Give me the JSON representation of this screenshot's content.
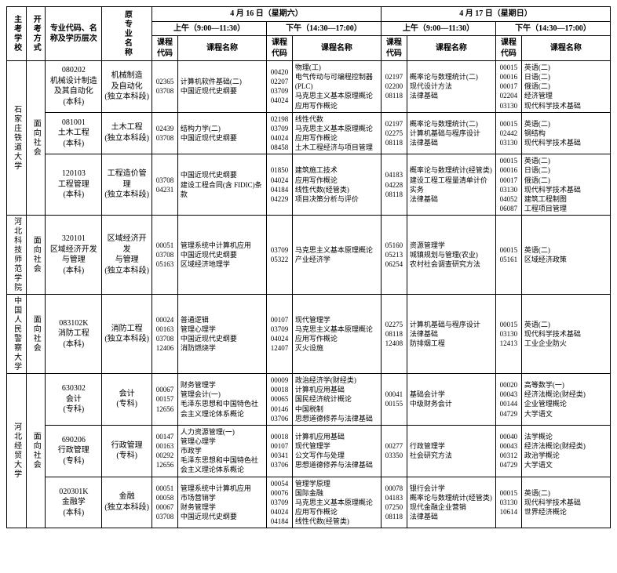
{
  "header": {
    "school": "主考学校",
    "method": "开考方式",
    "major": "专业代码、名称及学历层次",
    "orig": "原专业名称",
    "day1": "4 月 16 日（星期六）",
    "day2": "4 月 17 日（星期日）",
    "am": "上午（9:00—11:30）",
    "pm": "下午（14:30—17:00）",
    "code": "课程代码",
    "name": "课程名称"
  },
  "schools": {
    "s1": "石家庄铁道大学",
    "s2": "河北科技师范学院",
    "s3": "中国人民警察大学",
    "s4": "河北经贸大学"
  },
  "method_label": "面向社会",
  "rows": [
    {
      "major": "080202\n机械设计制造\n及其自动化\n(本科)",
      "orig": "机械制造\n及自动化\n(独立本科段)",
      "c1": "02365\n03708",
      "n1": "计算机软件基础(二)\n中国近现代史纲要",
      "c2": "00420\n02207\n03709\n04024",
      "n2": "物理(工)\n电气传动与可编程控制器(PLC)\n马克思主义基本原理概论\n应用写作概论",
      "c3": "02197\n02200\n08118",
      "n3": "概率论与数理统计(二)\n现代设计方法\n法律基础",
      "c4": "00015\n00016\n00017\n02204\n03130",
      "n4": "英语(二)\n日语(二)\n俄语(二)\n经济管理\n现代科学技术基础"
    },
    {
      "major": "081001\n土木工程\n(本科)",
      "orig": "土木工程\n(独立本科段)",
      "c1": "02439\n03708",
      "n1": "结构力学(二)\n中国近现代史纲要",
      "c2": "02198\n03709\n04024\n08458",
      "n2": "线性代数\n马克思主义基本原理概论\n应用写作概论\n土木工程经济与项目管理",
      "c3": "02197\n02275\n08118",
      "n3": "概率论与数理统计(二)\n计算机基础与程序设计\n法律基础",
      "c4": "00015\n02442\n03130",
      "n4": "英语(二)\n钢结构\n现代科学技术基础"
    },
    {
      "major": "120103\n工程管理\n(本科)",
      "orig": "工程造价管理\n(独立本科段)",
      "c1": "03708\n04231",
      "n1": "中国近现代史纲要\n建设工程合同(含 FIDIC)条款",
      "c2": "01850\n04024\n04184\n04229",
      "n2": "建筑施工技术\n应用写作概论\n线性代数(经管类)\n项目决策分析与评价",
      "c3": "04183\n04228\n08118",
      "n3": "概率论与数理统计(经管类)\n建设工程工程量清单计价实务\n法律基础",
      "c4": "00015\n00016\n00017\n03130\n04052\n06087",
      "n4": "英语(二)\n日语(二)\n俄语(二)\n现代科学技术基础\n建筑工程制图\n工程项目管理"
    },
    {
      "major": "320101\n区域经济开发\n与管理\n(本科)",
      "orig": "区域经济开发\n与管理\n(独立本科段)",
      "c1": "00051\n03708\n05163",
      "n1": "管理系统中计算机应用\n中国近现代史纲要\n区域经济地理学",
      "c2": "03709\n05322",
      "n2": "马克思主义基本原理概论\n产业经济学",
      "c3": "05160\n05213\n06254",
      "n3": "资源管理学\n城镇规划与管理(农业)\n农村社会调查研究方法",
      "c4": "00015\n05161",
      "n4": "英语(二)\n区域经济政策"
    },
    {
      "major": "083102K\n消防工程\n(本科)",
      "orig": "消防工程\n(独立本科段)",
      "c1": "00024\n00163\n03708\n12406",
      "n1": "普通逻辑\n管理心理学\n中国近现代史纲要\n消防燃烧学",
      "c2": "00107\n03709\n04024\n12407",
      "n2": "现代管理学\n马克思主义基本原理概论\n应用写作概论\n灭火设施",
      "c3": "02275\n08118\n12408",
      "n3": "计算机基础与程序设计\n法律基础\n防排烟工程",
      "c4": "00015\n03130\n12413",
      "n4": "英语(二)\n现代科学技术基础\n工业企业防火"
    },
    {
      "major": "630302\n会计\n(专科)",
      "orig": "会计\n(专科)",
      "c1": "00067\n00157\n12656",
      "n1": "财务管理学\n管理会计(一)\n毛泽东思想和中国特色社会主义理论体系概论",
      "c2": "00009\n00018\n00065\n00146\n03706",
      "n2": "政治经济学(财经类)\n计算机应用基础\n国民经济统计概论\n中国税制\n思想道德修养与法律基础",
      "c3": "00041\n00155",
      "n3": "基础会计学\n中级财务会计",
      "c4": "00020\n00043\n00144\n04729",
      "n4": "高等数学(一)\n经济法概论(财经类)\n企业管理概论\n大学语文"
    },
    {
      "major": "690206\n行政管理\n(专科)",
      "orig": "行政管理\n(专科)",
      "c1": "00147\n00163\n00292\n12656",
      "n1": "人力资源管理(一)\n管理心理学\n市政学\n毛泽东思想和中国特色社会主义理论体系概论",
      "c2": "00018\n00107\n00341\n03706",
      "n2": "计算机应用基础\n现代管理学\n公文写作与处理\n思想道德修养与法律基础",
      "c3": "00277\n03350",
      "n3": "行政管理学\n社会研究方法",
      "c4": "00040\n00043\n00312\n04729",
      "n4": "法学概论\n经济法概论(财经类)\n政治学概论\n大学语文"
    },
    {
      "major": "020301K\n金融学\n(本科)",
      "orig": "金融\n(独立本科段)",
      "c1": "00051\n00058\n00067\n03708",
      "n1": "管理系统中计算机应用\n市场营销学\n财务管理学\n中国近现代史纲要",
      "c2": "00054\n00076\n03709\n04024\n04184",
      "n2": "管理学原理\n国际金融\n马克思主义基本原理概论\n应用写作概论\n线性代数(经管类)",
      "c3": "00078\n04183\n07250\n08118",
      "n3": "银行会计学\n概率论与数理统计(经管类)\n现代金融企业营销\n法律基础",
      "c4": "00015\n03130\n10614",
      "n4": "英语(二)\n现代科学技术基础\n世界经济概论"
    }
  ]
}
